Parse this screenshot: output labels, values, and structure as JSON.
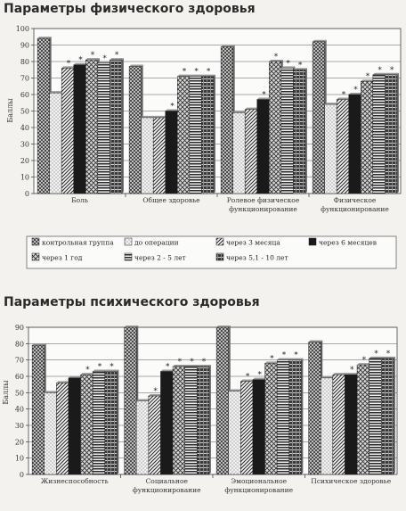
{
  "titles": {
    "physical": "Параметры физического здоровья",
    "mental": "Параметры психического здоровья"
  },
  "legend": [
    "контрольная группа",
    "до операции",
    "через 3 месяца",
    "через 6 месяцев",
    "через 1 год",
    "через 2 - 5 лет",
    "через 5,1 - 10 лет"
  ],
  "chart_data": [
    {
      "type": "bar",
      "title": "Параметры физического здоровья",
      "ylabel": "Баллы",
      "ylim": [
        0,
        100
      ],
      "yticks": [
        0,
        10,
        20,
        30,
        40,
        50,
        60,
        70,
        80,
        90,
        100
      ],
      "grid": true,
      "categories": [
        [
          "Боль"
        ],
        [
          "Общее здоровье"
        ],
        [
          "Ролевое физическое",
          "функционирование"
        ],
        [
          "Физическое",
          "функционирование"
        ]
      ],
      "series": [
        {
          "name": "контрольная группа",
          "values": [
            94,
            77,
            89,
            92
          ]
        },
        {
          "name": "до операции",
          "values": [
            61,
            46,
            49,
            54
          ]
        },
        {
          "name": "через 3 месяца",
          "values": [
            76,
            46,
            51,
            57
          ]
        },
        {
          "name": "через 6 месяцев",
          "values": [
            78,
            50,
            57,
            60
          ]
        },
        {
          "name": "через 1 год",
          "values": [
            81,
            71,
            80,
            68
          ]
        },
        {
          "name": "через 2 - 5 лет",
          "values": [
            79,
            71,
            76,
            72
          ]
        },
        {
          "name": "через 5,1 - 10 лет",
          "values": [
            81,
            71,
            75,
            72
          ]
        }
      ],
      "marks": [
        [
          "",
          "",
          "*",
          "*",
          "*",
          "*",
          "*"
        ],
        [
          "",
          "",
          "",
          "*",
          "*",
          "*",
          "*"
        ],
        [
          "",
          "",
          "",
          "*",
          "*",
          "*",
          "*"
        ],
        [
          "",
          "",
          "*",
          "*",
          "*",
          "*",
          "*"
        ]
      ]
    },
    {
      "type": "bar",
      "title": "Параметры психического здоровья",
      "ylabel": "Баллы",
      "ylim": [
        0,
        90
      ],
      "yticks": [
        0,
        10,
        20,
        30,
        40,
        50,
        60,
        70,
        80,
        90
      ],
      "grid": true,
      "categories": [
        [
          "Жизнеспособность"
        ],
        [
          "Социальное",
          "функционирование"
        ],
        [
          "Эмоциональное",
          "функционирование"
        ],
        [
          "Психическое здоровье"
        ]
      ],
      "series": [
        {
          "name": "контрольная группа",
          "values": [
            79,
            90,
            90,
            81
          ]
        },
        {
          "name": "до операции",
          "values": [
            50,
            45,
            51,
            59
          ]
        },
        {
          "name": "через 3 месяца",
          "values": [
            56,
            48,
            57,
            61
          ]
        },
        {
          "name": "через 6 месяцев",
          "values": [
            59,
            63,
            58,
            61
          ]
        },
        {
          "name": "через 1 год",
          "values": [
            61,
            66,
            68,
            67
          ]
        },
        {
          "name": "через 2 - 5 лет",
          "values": [
            63,
            66,
            70,
            71
          ]
        },
        {
          "name": "через 5,1 - 10 лет",
          "values": [
            63,
            66,
            70,
            71
          ]
        }
      ],
      "marks": [
        [
          "",
          "",
          "",
          "",
          "*",
          "*",
          "*"
        ],
        [
          "",
          "",
          "*",
          "*",
          "*",
          "*",
          "*"
        ],
        [
          "",
          "",
          "*",
          "*",
          "*",
          "*",
          "*"
        ],
        [
          "",
          "",
          "",
          "*",
          "*",
          "*",
          "*"
        ]
      ]
    }
  ]
}
